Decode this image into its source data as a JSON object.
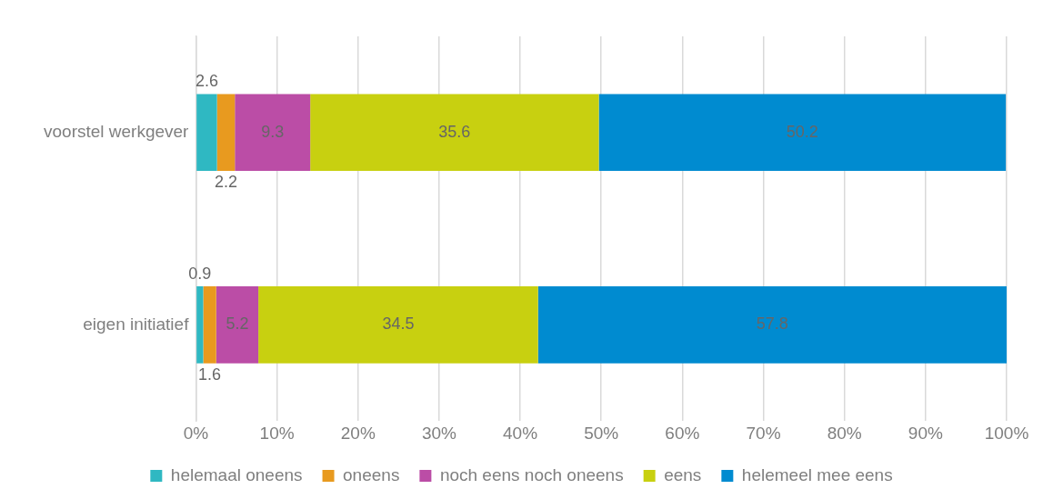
{
  "chart_data": {
    "type": "bar",
    "orientation": "horizontal",
    "stacked": true,
    "categories": [
      "voorstel werkgever",
      "eigen initiatief"
    ],
    "series": [
      {
        "name": "helemaal oneens",
        "color": "#2fb8c2",
        "values": [
          2.6,
          0.9
        ]
      },
      {
        "name": "oneens",
        "color": "#e89a1f",
        "values": [
          2.2,
          1.6
        ]
      },
      {
        "name": "noch eens noch oneens",
        "color": "#bb4da6",
        "values": [
          9.3,
          5.2
        ]
      },
      {
        "name": "eens",
        "color": "#c8d010",
        "values": [
          35.6,
          34.5
        ]
      },
      {
        "name": "helemeel mee eens",
        "color": "#008bd0",
        "values": [
          50.2,
          57.8
        ]
      }
    ],
    "xlim": [
      0,
      100
    ],
    "xticks": [
      {
        "value": 0,
        "label": "0%"
      },
      {
        "value": 10,
        "label": "10%"
      },
      {
        "value": 20,
        "label": "20%"
      },
      {
        "value": 30,
        "label": "30%"
      },
      {
        "value": 40,
        "label": "40%"
      },
      {
        "value": 50,
        "label": "50%"
      },
      {
        "value": 60,
        "label": "60%"
      },
      {
        "value": 70,
        "label": "70%"
      },
      {
        "value": 80,
        "label": "80%"
      },
      {
        "value": 90,
        "label": "90%"
      },
      {
        "value": 100,
        "label": "100%"
      }
    ],
    "grid": "x",
    "legend": "bottom",
    "data_labels": true
  }
}
